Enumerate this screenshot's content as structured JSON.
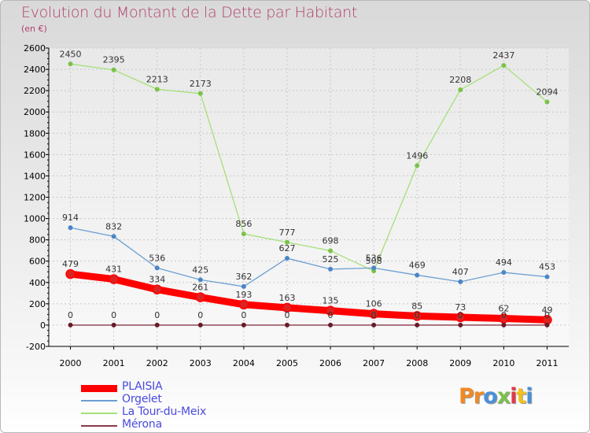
{
  "title": "Evolution du Montant de la Dette par Habitant",
  "subtitle": "(en €)",
  "brand": {
    "letters": [
      "P",
      "r",
      "o",
      "x",
      "i",
      "t",
      "i"
    ],
    "colors": [
      "#f08a24",
      "#f08a24",
      "#4a90d9",
      "#7cc04a",
      "#e8364a",
      "#f0c020",
      "#4a90d9"
    ]
  },
  "chart_data": {
    "type": "line",
    "title": "Evolution du Montant de la Dette par Habitant",
    "ylabel": "(en €)",
    "xlabel": "",
    "ylim": [
      -200,
      2600
    ],
    "ytick_step": 200,
    "yticks": [
      "-200",
      "0",
      "200",
      "400",
      "600",
      "800",
      "1000",
      "1200",
      "1400",
      "1600",
      "1800",
      "2000",
      "2200",
      "2400",
      "2600"
    ],
    "categories": [
      "2000",
      "2001",
      "2002",
      "2003",
      "2004",
      "2005",
      "2006",
      "2007",
      "2008",
      "2009",
      "2010",
      "2011"
    ],
    "legend_position": "bottom-left",
    "series": [
      {
        "name": "PLAISIA",
        "color": "#ff0000",
        "marker": "#dd2222",
        "thick": true,
        "values": [
          479,
          431,
          334,
          261,
          193,
          163,
          135,
          106,
          85,
          73,
          62,
          49
        ]
      },
      {
        "name": "Orgelet",
        "color": "#6c9fd2",
        "marker": "#4a86c8",
        "thick": false,
        "values": [
          914,
          832,
          536,
          425,
          362,
          627,
          525,
          536,
          469,
          407,
          494,
          453
        ]
      },
      {
        "name": "La Tour-du-Meix",
        "color": "#a5e07a",
        "marker": "#7cc24a",
        "thick": false,
        "values": [
          2450,
          2395,
          2213,
          2173,
          856,
          777,
          698,
          508,
          1496,
          2208,
          2437,
          2094
        ]
      },
      {
        "name": "Mérona",
        "color": "#8a3a48",
        "marker": "#6a1a28",
        "thick": false,
        "values": [
          0,
          0,
          0,
          0,
          0,
          0,
          0,
          0,
          0,
          0,
          0,
          0
        ]
      }
    ]
  }
}
